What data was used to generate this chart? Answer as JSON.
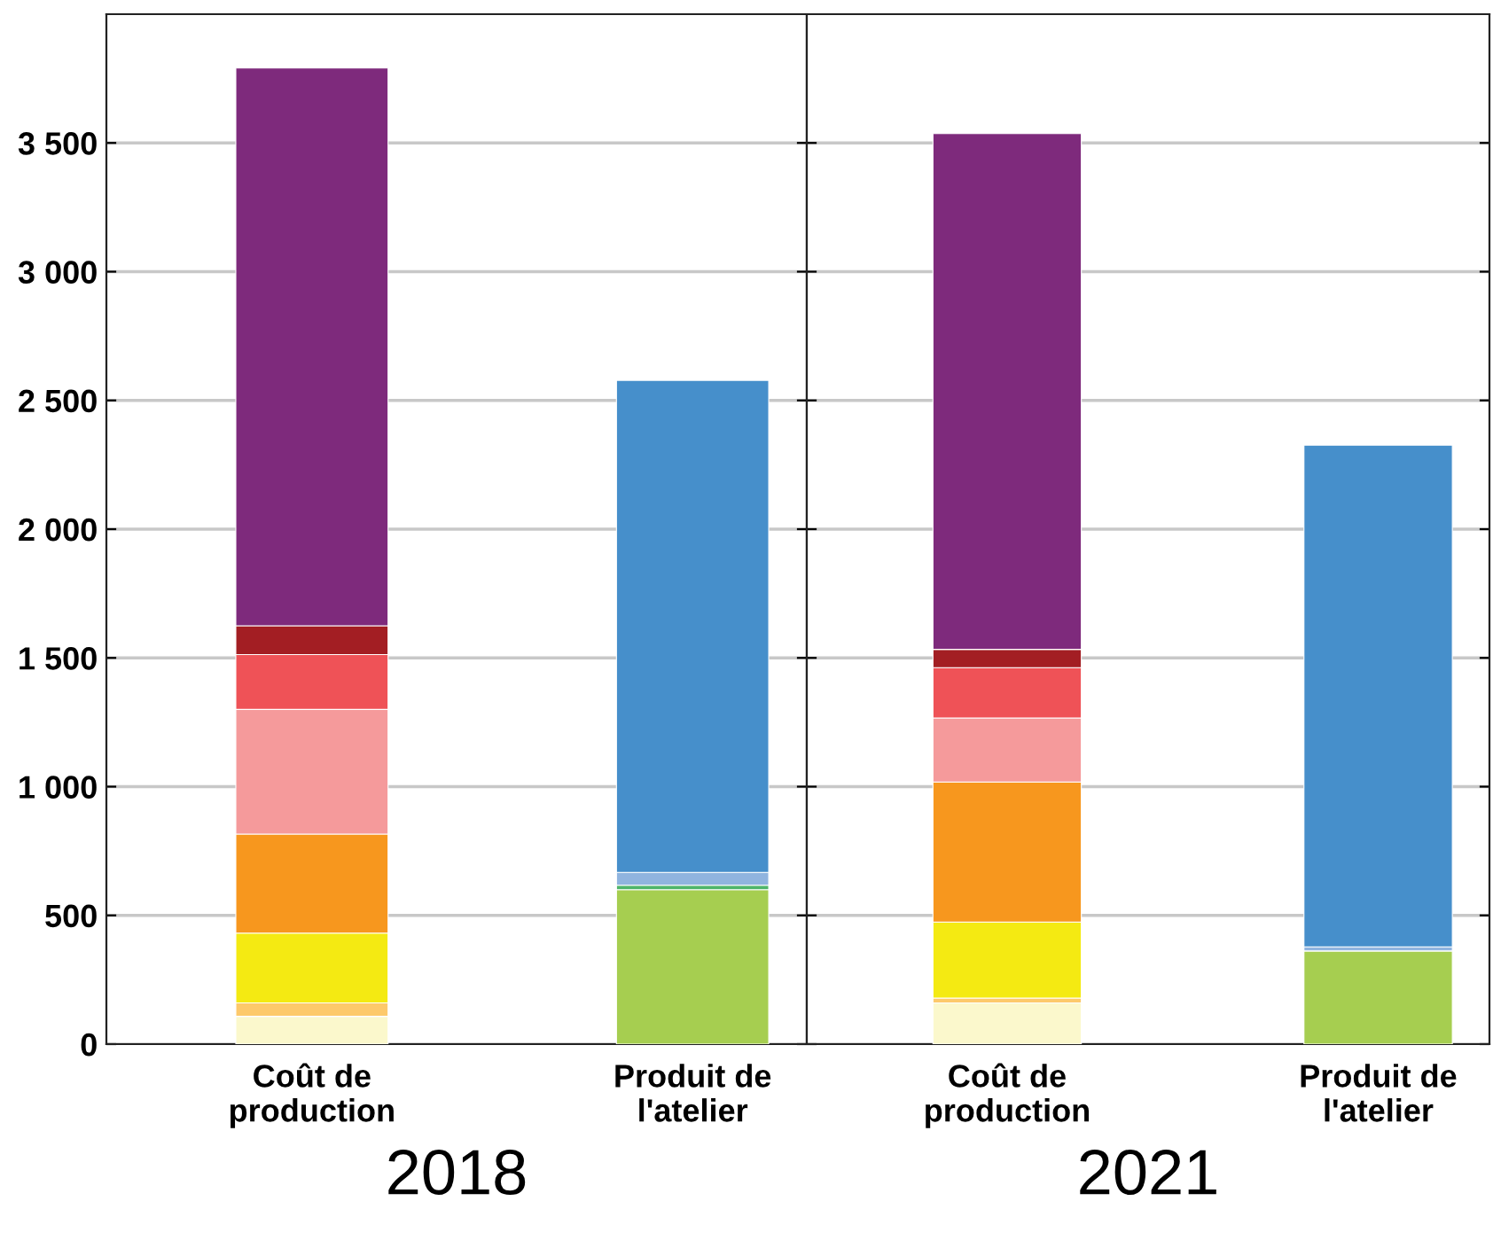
{
  "chart_data": [
    {
      "type": "bar",
      "stacked": true,
      "xlabel": "2018",
      "categories": [
        "Coût de\nproduction",
        "Produit de\nl'atelier"
      ],
      "ylim": [
        0,
        4000
      ],
      "yticks": [
        0,
        {
          "value": 500,
          "label": "500"
        },
        {
          "value": 1000,
          "label": "1 000"
        },
        {
          "value": 1500,
          "label": "1 500"
        },
        {
          "value": 2000,
          "label": "2 000"
        },
        {
          "value": 2500,
          "label": "2 500"
        },
        {
          "value": 3000,
          "label": "3 000"
        },
        {
          "value": 3500,
          "label": "3 500"
        }
      ],
      "grid": "y",
      "legend": false,
      "series": [
        {
          "color": "#fbf8cc",
          "values": [
            108,
            null
          ]
        },
        {
          "color": "#fdc96b",
          "values": [
            52,
            null
          ]
        },
        {
          "color": "#f4ea12",
          "values": [
            271,
            null
          ]
        },
        {
          "color": "#f7971e",
          "values": [
            385,
            null
          ]
        },
        {
          "color": "#f59a9b",
          "values": [
            484,
            null
          ]
        },
        {
          "color": "#ef5257",
          "values": [
            213,
            null
          ]
        },
        {
          "color": "#a31e23",
          "values": [
            112,
            null
          ]
        },
        {
          "color": "#7e2a7c",
          "values": [
            2166,
            null
          ]
        },
        {
          "color": "#a6ce50",
          "values": [
            null,
            600
          ]
        },
        {
          "color": "#4fb56b",
          "values": [
            null,
            17
          ]
        },
        {
          "color": "#90b4df",
          "values": [
            null,
            50
          ]
        },
        {
          "color": "#468fcb",
          "values": [
            null,
            1911
          ]
        }
      ]
    },
    {
      "type": "bar",
      "stacked": true,
      "xlabel": "2021",
      "categories": [
        "Coût de\nproduction",
        "Produit de\nl'atelier"
      ],
      "ylim": [
        0,
        4000
      ],
      "yticks": [
        0,
        500,
        1000,
        1500,
        2000,
        2500,
        3000,
        3500
      ],
      "tick_labels": "x",
      "grid": "y",
      "legend": false,
      "series": [
        {
          "color": "#fbf8cc",
          "values": [
            160,
            null
          ]
        },
        {
          "color": "#fdc96b",
          "values": [
            19,
            null
          ]
        },
        {
          "color": "#f4ea12",
          "values": [
            295,
            null
          ]
        },
        {
          "color": "#f7971e",
          "values": [
            544,
            null
          ]
        },
        {
          "color": "#f59a9b",
          "values": [
            249,
            null
          ]
        },
        {
          "color": "#ef5257",
          "values": [
            195,
            null
          ]
        },
        {
          "color": "#a31e23",
          "values": [
            71,
            null
          ]
        },
        {
          "color": "#7e2a7c",
          "values": [
            2003,
            null
          ]
        },
        {
          "color": "#a6ce50",
          "values": [
            null,
            362
          ]
        },
        {
          "color": "#90b4df",
          "values": [
            null,
            16
          ]
        },
        {
          "color": "#468fcb",
          "values": [
            null,
            1948
          ]
        }
      ]
    }
  ]
}
